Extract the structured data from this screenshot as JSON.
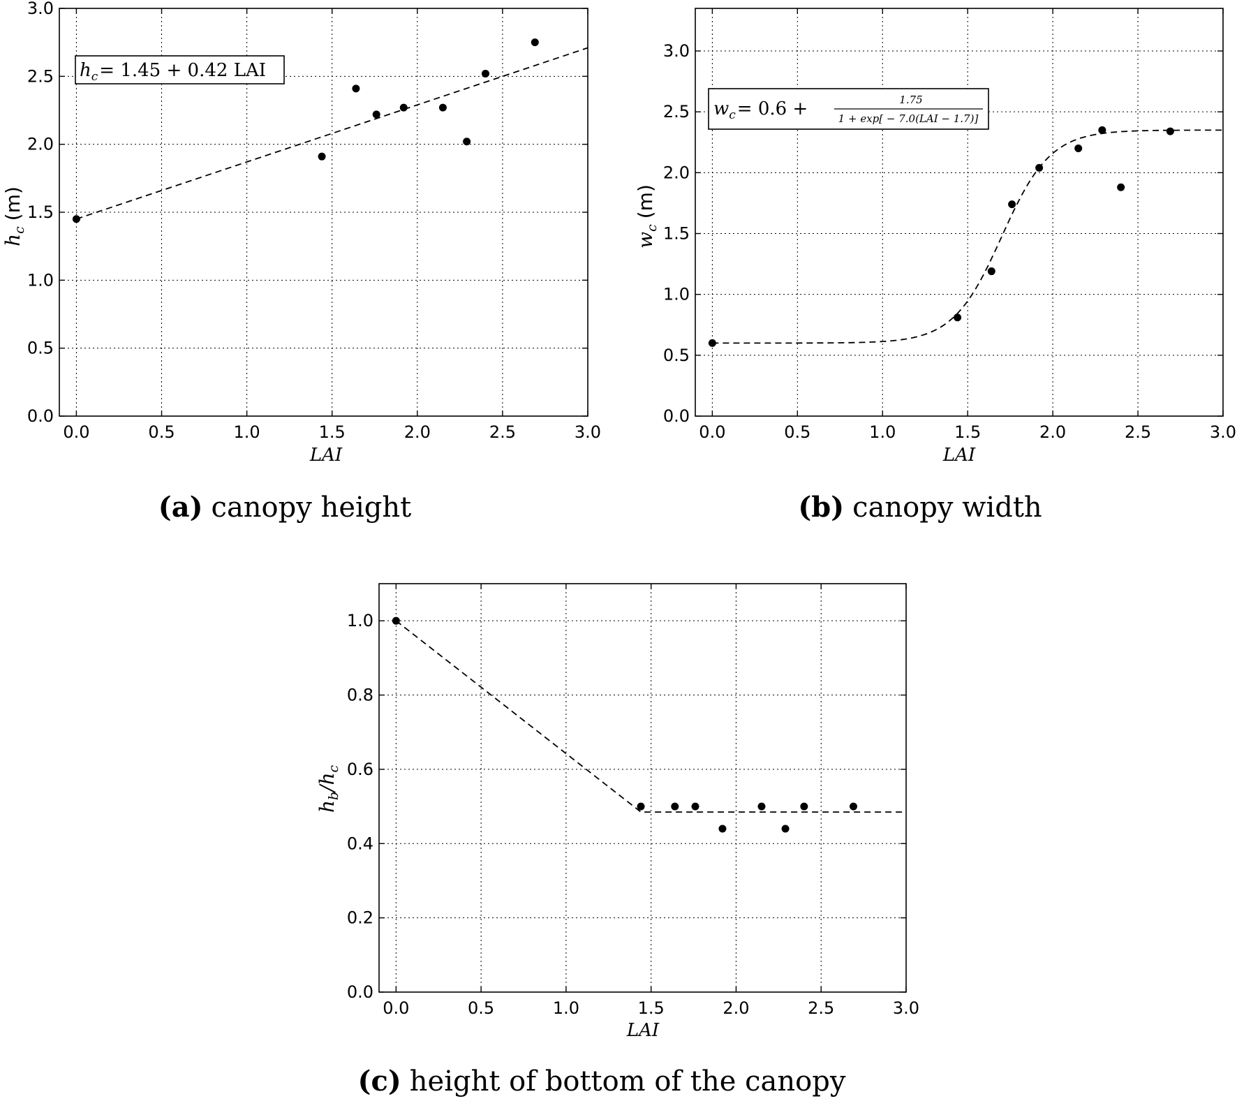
{
  "chart_data": [
    {
      "type": "scatter",
      "id": "a",
      "caption_tag": "(a)",
      "caption_text": "canopy height",
      "xlabel": "LAI",
      "ylabel": "h",
      "ylabel_sub": "c",
      "ylabel_unit": "(m)",
      "xlim": [
        -0.1,
        3.0
      ],
      "ylim": [
        0.0,
        3.0
      ],
      "xticks": [
        0.0,
        0.5,
        1.0,
        1.5,
        2.0,
        2.5,
        3.0
      ],
      "xtick_labels": [
        "0.0",
        "0.5",
        "1.0",
        "1.5",
        "2.0",
        "2.5",
        "3.0"
      ],
      "yticks": [
        0.0,
        0.5,
        1.0,
        1.5,
        2.0,
        2.5,
        3.0
      ],
      "ytick_labels": [
        "0.0",
        "0.5",
        "1.0",
        "1.5",
        "2.0",
        "2.5",
        "3.0"
      ],
      "grid": true,
      "points": [
        {
          "x": 0.0,
          "y": 1.45
        },
        {
          "x": 1.44,
          "y": 1.91
        },
        {
          "x": 1.64,
          "y": 2.41
        },
        {
          "x": 1.76,
          "y": 2.22
        },
        {
          "x": 1.92,
          "y": 2.27
        },
        {
          "x": 2.15,
          "y": 2.27
        },
        {
          "x": 2.29,
          "y": 2.02
        },
        {
          "x": 2.4,
          "y": 2.52
        },
        {
          "x": 2.69,
          "y": 2.75
        }
      ],
      "fit": {
        "model": "linear",
        "intercept": 1.45,
        "slope": 0.42,
        "x_range": [
          0.0,
          3.0
        ]
      },
      "equation": {
        "lhs": "h",
        "lhs_sub": "c",
        "rhs": "= 1.45 + 0.42 LAI"
      }
    },
    {
      "type": "scatter",
      "id": "b",
      "caption_tag": "(b)",
      "caption_text": "canopy width",
      "xlabel": "LAI",
      "ylabel": "w",
      "ylabel_sub": "c",
      "ylabel_unit": "(m)",
      "xlim": [
        -0.1,
        3.0
      ],
      "ylim": [
        0.0,
        3.35
      ],
      "xticks": [
        0.0,
        0.5,
        1.0,
        1.5,
        2.0,
        2.5,
        3.0
      ],
      "xtick_labels": [
        "0.0",
        "0.5",
        "1.0",
        "1.5",
        "2.0",
        "2.5",
        "3.0"
      ],
      "yticks": [
        0.0,
        0.5,
        1.0,
        1.5,
        2.0,
        2.5,
        3.0
      ],
      "ytick_labels": [
        "0.0",
        "0.5",
        "1.0",
        "1.5",
        "2.0",
        "2.5",
        "3.0"
      ],
      "grid": true,
      "points": [
        {
          "x": 0.0,
          "y": 0.6
        },
        {
          "x": 1.44,
          "y": 0.81
        },
        {
          "x": 1.64,
          "y": 1.19
        },
        {
          "x": 1.76,
          "y": 1.74
        },
        {
          "x": 1.92,
          "y": 2.04
        },
        {
          "x": 2.15,
          "y": 2.2
        },
        {
          "x": 2.29,
          "y": 2.35
        },
        {
          "x": 2.4,
          "y": 1.88
        },
        {
          "x": 2.69,
          "y": 2.34
        }
      ],
      "fit": {
        "model": "logistic",
        "base": 0.6,
        "amplitude": 1.75,
        "rate": 7.0,
        "midpoint": 1.7,
        "x_range": [
          0.0,
          3.0
        ]
      },
      "equation": {
        "lhs": "w",
        "lhs_sub": "c",
        "rhs": "= 0.6 +",
        "numerator": "1.75",
        "denominator": "1 + exp[ − 7.0(LAI − 1.7)]"
      }
    },
    {
      "type": "scatter",
      "id": "c",
      "caption_tag": "(c)",
      "caption_text": "height of bottom of the canopy",
      "xlabel": "LAI",
      "ylabel": "h",
      "ylabel_sub": "b",
      "ylabel_tail": "/h",
      "ylabel_tail_sub": "c",
      "xlim": [
        -0.1,
        3.0
      ],
      "ylim": [
        0.0,
        1.1
      ],
      "xticks": [
        0.0,
        0.5,
        1.0,
        1.5,
        2.0,
        2.5,
        3.0
      ],
      "xtick_labels": [
        "0.0",
        "0.5",
        "1.0",
        "1.5",
        "2.0",
        "2.5",
        "3.0"
      ],
      "yticks": [
        0.0,
        0.2,
        0.4,
        0.6,
        0.8,
        1.0
      ],
      "ytick_labels": [
        "0.0",
        "0.2",
        "0.4",
        "0.6",
        "0.8",
        "1.0"
      ],
      "grid": true,
      "points": [
        {
          "x": 0.0,
          "y": 1.0
        },
        {
          "x": 1.44,
          "y": 0.5
        },
        {
          "x": 1.64,
          "y": 0.5
        },
        {
          "x": 1.76,
          "y": 0.5
        },
        {
          "x": 1.92,
          "y": 0.44
        },
        {
          "x": 2.15,
          "y": 0.5
        },
        {
          "x": 2.29,
          "y": 0.44
        },
        {
          "x": 2.4,
          "y": 0.5
        },
        {
          "x": 2.69,
          "y": 0.5
        }
      ],
      "fit": {
        "model": "piecewise",
        "points": [
          [
            0.0,
            1.0
          ],
          [
            1.44,
            0.485
          ],
          [
            3.0,
            0.485
          ]
        ]
      }
    }
  ]
}
